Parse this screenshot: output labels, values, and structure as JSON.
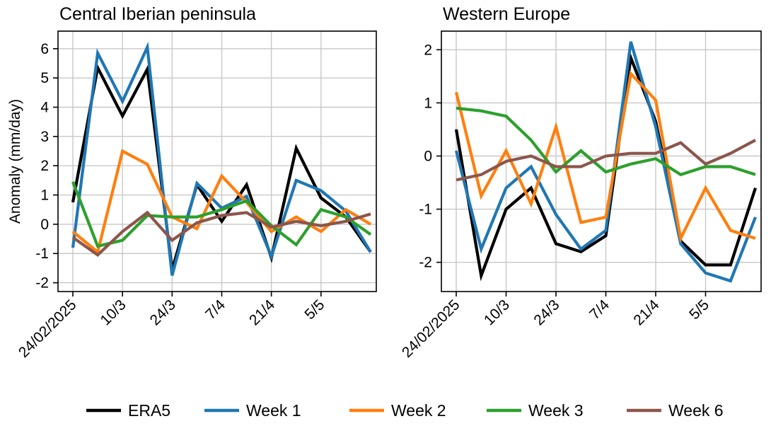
{
  "chart_data": [
    {
      "type": "line",
      "title": "Central Iberian peninsula",
      "ylabel": "Anomaly (mm/day)",
      "xlabel": "",
      "ylim": [
        -2.3,
        6.6
      ],
      "yticks": [
        -2,
        -1,
        0,
        1,
        2,
        3,
        4,
        5,
        6
      ],
      "ytick_labels": [
        "-2",
        "-1",
        "0",
        "1",
        "2",
        "3",
        "4",
        "5",
        "6"
      ],
      "x": [
        "24/02/2025",
        "03/03/2025",
        "10/03/2025",
        "17/03/2025",
        "24/03/2025",
        "31/03/2025",
        "07/04/2025",
        "14/04/2025",
        "21/04/2025",
        "28/04/2025",
        "05/05/2025",
        "12/05/2025",
        "19/05/2025"
      ],
      "xticks": [
        "24/02/2025",
        "10/03/2025",
        "24/03/2025",
        "07/04/2025",
        "21/04/2025",
        "05/05/2025"
      ],
      "xtick_labels": [
        "24/02/2025",
        "10/3",
        "24/3",
        "7/4",
        "21/4",
        "5/5"
      ],
      "grid": true,
      "series": [
        {
          "name": "ERA5",
          "color": "#000000",
          "values": [
            0.75,
            5.35,
            3.7,
            5.3,
            -1.55,
            1.35,
            0.1,
            1.35,
            -1.15,
            2.6,
            0.9,
            0.25,
            -0.95
          ]
        },
        {
          "name": "Week 1",
          "color": "#1f77b4",
          "values": [
            -0.8,
            5.85,
            4.2,
            6.05,
            -1.75,
            1.4,
            0.55,
            0.95,
            -1.1,
            1.5,
            1.15,
            0.45,
            -0.95
          ]
        },
        {
          "name": "Week 2",
          "color": "#ff7f0e",
          "values": [
            -0.25,
            -0.95,
            2.5,
            2.05,
            0.25,
            -0.15,
            1.65,
            0.75,
            -0.25,
            0.25,
            -0.25,
            0.5,
            0.0
          ]
        },
        {
          "name": "Week 3",
          "color": "#2ca02c",
          "values": [
            1.45,
            -0.75,
            -0.55,
            0.3,
            0.25,
            0.25,
            0.5,
            0.8,
            -0.05,
            -0.7,
            0.5,
            0.25,
            -0.35
          ]
        },
        {
          "name": "Week 6",
          "color": "#8c564b",
          "values": [
            -0.45,
            -1.05,
            -0.25,
            0.4,
            -0.55,
            0.05,
            0.3,
            0.4,
            -0.1,
            0.1,
            -0.05,
            0.1,
            0.35
          ]
        }
      ]
    },
    {
      "type": "line",
      "title": "Western Europe",
      "ylabel": "",
      "xlabel": "",
      "ylim": [
        -2.55,
        2.35
      ],
      "yticks": [
        -2,
        -1,
        0,
        1,
        2
      ],
      "ytick_labels": [
        "-2",
        "-1",
        "0",
        "1",
        "2"
      ],
      "x": [
        "24/02/2025",
        "03/03/2025",
        "10/03/2025",
        "17/03/2025",
        "24/03/2025",
        "31/03/2025",
        "07/04/2025",
        "14/04/2025",
        "21/04/2025",
        "28/04/2025",
        "05/05/2025",
        "12/05/2025",
        "19/05/2025"
      ],
      "xticks": [
        "24/02/2025",
        "10/03/2025",
        "24/03/2025",
        "07/04/2025",
        "21/04/2025",
        "05/05/2025"
      ],
      "xtick_labels": [
        "24/02/2025",
        "10/3",
        "24/3",
        "7/4",
        "21/4",
        "5/5"
      ],
      "grid": true,
      "series": [
        {
          "name": "ERA5",
          "color": "#000000",
          "values": [
            0.5,
            -2.25,
            -1.0,
            -0.6,
            -1.65,
            -1.8,
            -1.5,
            1.85,
            0.65,
            -1.6,
            -2.05,
            -2.05,
            -0.6
          ]
        },
        {
          "name": "Week 1",
          "color": "#1f77b4",
          "values": [
            0.1,
            -1.75,
            -0.6,
            -0.2,
            -1.1,
            -1.75,
            -1.4,
            2.15,
            0.55,
            -1.65,
            -2.2,
            -2.35,
            -1.15
          ]
        },
        {
          "name": "Week 2",
          "color": "#ff7f0e",
          "values": [
            1.2,
            -0.75,
            0.1,
            -0.9,
            0.55,
            -1.25,
            -1.15,
            1.55,
            1.05,
            -1.55,
            -0.6,
            -1.4,
            -1.55
          ]
        },
        {
          "name": "Week 3",
          "color": "#2ca02c",
          "values": [
            0.9,
            0.85,
            0.75,
            0.3,
            -0.3,
            0.1,
            -0.3,
            -0.15,
            -0.05,
            -0.35,
            -0.2,
            -0.2,
            -0.35
          ]
        },
        {
          "name": "Week 6",
          "color": "#8c564b",
          "values": [
            -0.45,
            -0.35,
            -0.1,
            0.0,
            -0.2,
            -0.2,
            0.0,
            0.05,
            0.05,
            0.25,
            -0.15,
            0.05,
            0.3
          ]
        }
      ]
    }
  ],
  "legend": {
    "placement": "bottom",
    "items": [
      {
        "label": "ERA5",
        "color": "#000000"
      },
      {
        "label": "Week 1",
        "color": "#1f77b4"
      },
      {
        "label": "Week 2",
        "color": "#ff7f0e"
      },
      {
        "label": "Week 3",
        "color": "#2ca02c"
      },
      {
        "label": "Week 6",
        "color": "#8c564b"
      }
    ]
  }
}
